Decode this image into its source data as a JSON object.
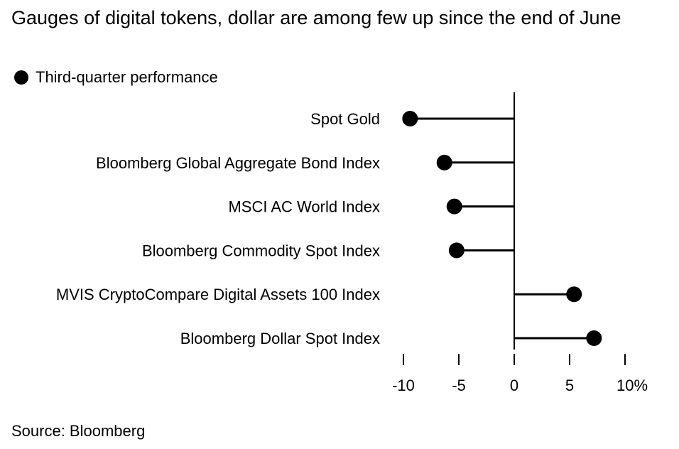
{
  "chart_data": {
    "type": "lollipop",
    "title": "Gauges of digital tokens, dollar are among few up since the end of June",
    "legend": [
      {
        "label": "Third-quarter performance",
        "marker": "circle",
        "color": "#000000"
      }
    ],
    "categories": [
      "Spot Gold",
      "Bloomberg Global Aggregate Bond Index",
      "MSCI AC World Index",
      "Bloomberg Commodity Spot Index",
      "MVIS CryptoCompare Digital Assets 100 Index",
      "Bloomberg Dollar Spot Index"
    ],
    "series": [
      {
        "name": "Third-quarter performance",
        "values": [
          -9.4,
          -6.3,
          -5.4,
          -5.2,
          5.4,
          7.2
        ]
      }
    ],
    "xlim": [
      -10,
      10
    ],
    "xticks": [
      -10,
      -5,
      0,
      5,
      10
    ],
    "xtick_labels": [
      "-10",
      "-5",
      "0",
      "5",
      "10%"
    ],
    "xlabel": "",
    "ylabel": "",
    "grid": false,
    "source": "Source: Bloomberg"
  }
}
